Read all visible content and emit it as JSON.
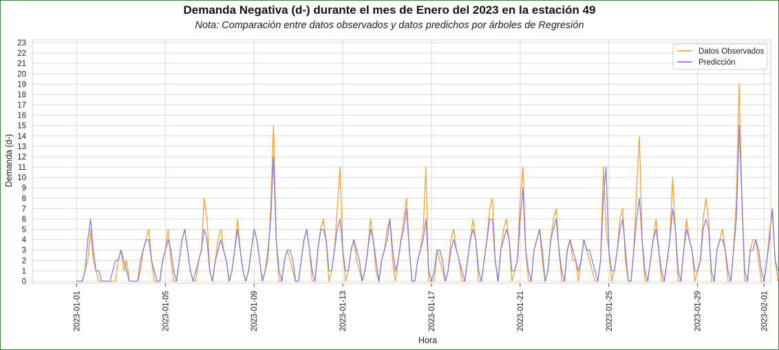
{
  "chart_data": {
    "type": "line",
    "title": "Demanda Negativa (d-) durante el mes de Enero del 2023 en la estación 49",
    "subtitle": "Nota: Comparación entre datos observados y datos predichos por árboles de Regresión",
    "xlabel": "Hora",
    "ylabel": "Demanda (d-)",
    "ylim": [
      0,
      23
    ],
    "yticks": [
      0,
      1,
      2,
      3,
      4,
      5,
      6,
      7,
      8,
      9,
      10,
      11,
      12,
      13,
      14,
      15,
      16,
      17,
      18,
      19,
      20,
      21,
      22,
      23
    ],
    "xlim": [
      "2022-12-30",
      "2023-02-01"
    ],
    "xticks": [
      "2023-01-01",
      "2023-01-05",
      "2023-01-09",
      "2023-01-13",
      "2023-01-17",
      "2023-01-21",
      "2023-01-25",
      "2023-01-29",
      "2023-02-01"
    ],
    "grid": true,
    "legend_position": "top-right",
    "x_range": [
      "2023-01-01T00:00",
      "2023-01-31T00:00"
    ],
    "x_step": "hourly (sampled every 3 hours)",
    "series": [
      {
        "name": "Datos Observados",
        "color": "#ff9a1f",
        "values": [
          0,
          0,
          0,
          1,
          2,
          5,
          2,
          1,
          0,
          0,
          0,
          0,
          0,
          0,
          0,
          2,
          3,
          1,
          2,
          0,
          0,
          0,
          0,
          1,
          3,
          4,
          5,
          2,
          0,
          0,
          0,
          2,
          3,
          5,
          2,
          0,
          0,
          2,
          4,
          5,
          3,
          1,
          0,
          0,
          2,
          3,
          8,
          6,
          1,
          0,
          2,
          4,
          5,
          3,
          2,
          0,
          1,
          3,
          6,
          3,
          1,
          0,
          1,
          3,
          5,
          4,
          2,
          0,
          1,
          2,
          7,
          15,
          4,
          0,
          0,
          2,
          3,
          2,
          1,
          0,
          0,
          2,
          4,
          5,
          3,
          0,
          0,
          3,
          5,
          6,
          4,
          0,
          1,
          3,
          7,
          11,
          3,
          0,
          1,
          3,
          4,
          2,
          1,
          0,
          1,
          3,
          6,
          4,
          1,
          0,
          2,
          3,
          5,
          6,
          2,
          0,
          2,
          4,
          6,
          8,
          3,
          0,
          0,
          2,
          3,
          5,
          11,
          0,
          0,
          0,
          3,
          2,
          1,
          0,
          1,
          4,
          5,
          3,
          2,
          0,
          0,
          2,
          4,
          6,
          4,
          0,
          0,
          2,
          4,
          7,
          8,
          2,
          0,
          3,
          5,
          6,
          4,
          0,
          1,
          2,
          8,
          11,
          3,
          0,
          0,
          3,
          4,
          5,
          2,
          0,
          1,
          4,
          6,
          7,
          3,
          0,
          0,
          3,
          4,
          2,
          2,
          0,
          2,
          4,
          3,
          2,
          1,
          0,
          0,
          2,
          11,
          5,
          3,
          0,
          1,
          3,
          6,
          7,
          2,
          0,
          0,
          3,
          9,
          14,
          4,
          0,
          0,
          2,
          4,
          6,
          3,
          0,
          0,
          2,
          4,
          10,
          5,
          0,
          0,
          3,
          6,
          4,
          3,
          0,
          1,
          2,
          6,
          8,
          6,
          0,
          0,
          3,
          4,
          5,
          3,
          0,
          0,
          3,
          8,
          19,
          8,
          0,
          0,
          3,
          4,
          4,
          2,
          0,
          0,
          2,
          5,
          7,
          2,
          0
        ]
      },
      {
        "name": "Predicción",
        "color": "#6a6aff",
        "values": [
          0,
          0,
          0,
          1,
          4,
          6,
          3,
          1,
          1,
          0,
          0,
          0,
          0,
          1,
          2,
          2,
          3,
          2,
          1,
          0,
          0,
          0,
          0,
          2,
          3,
          4,
          4,
          2,
          1,
          0,
          0,
          2,
          3,
          4,
          3,
          1,
          0,
          2,
          4,
          5,
          3,
          1,
          0,
          1,
          2,
          3,
          5,
          4,
          1,
          0,
          2,
          3,
          4,
          3,
          2,
          0,
          1,
          3,
          5,
          3,
          1,
          0,
          1,
          3,
          5,
          4,
          2,
          0,
          1,
          3,
          6,
          12,
          4,
          1,
          0,
          2,
          3,
          3,
          2,
          0,
          0,
          2,
          4,
          5,
          3,
          1,
          0,
          3,
          5,
          5,
          4,
          1,
          1,
          3,
          5,
          6,
          3,
          1,
          1,
          3,
          4,
          3,
          2,
          0,
          1,
          3,
          5,
          4,
          2,
          0,
          2,
          3,
          4,
          6,
          3,
          1,
          2,
          4,
          5,
          7,
          3,
          0,
          0,
          2,
          3,
          4,
          6,
          1,
          0,
          1,
          3,
          3,
          2,
          0,
          1,
          3,
          4,
          3,
          2,
          1,
          0,
          2,
          4,
          5,
          4,
          1,
          0,
          2,
          4,
          6,
          6,
          2,
          0,
          3,
          4,
          5,
          4,
          1,
          1,
          2,
          6,
          9,
          3,
          1,
          0,
          3,
          4,
          5,
          3,
          0,
          1,
          4,
          5,
          6,
          3,
          1,
          0,
          3,
          4,
          3,
          2,
          1,
          2,
          4,
          3,
          3,
          2,
          1,
          0,
          2,
          8,
          11,
          3,
          1,
          1,
          3,
          5,
          6,
          3,
          0,
          0,
          3,
          6,
          8,
          4,
          1,
          0,
          2,
          4,
          5,
          3,
          1,
          0,
          2,
          4,
          7,
          5,
          1,
          0,
          3,
          5,
          4,
          3,
          1,
          1,
          2,
          5,
          6,
          5,
          1,
          0,
          3,
          4,
          4,
          3,
          1,
          0,
          3,
          6,
          15,
          8,
          1,
          0,
          3,
          3,
          4,
          3,
          1,
          0,
          2,
          4,
          7,
          2,
          1
        ]
      }
    ]
  }
}
